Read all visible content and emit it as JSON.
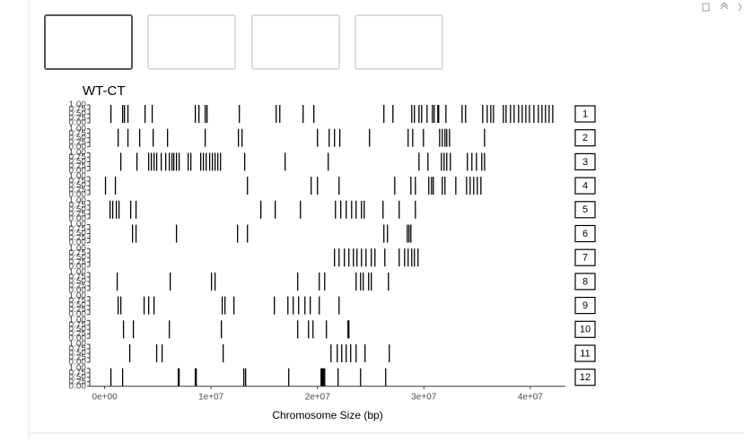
{
  "chart_data": {
    "type": "rug",
    "title": "WT-CT",
    "xlabel": "Chromosome Size (bp)",
    "color": "#000000",
    "xlim": [
      -1400000,
      43300000
    ],
    "xticks": [
      {
        "value": 0,
        "label": "0e+00"
      },
      {
        "value": 10000000,
        "label": "1e+07"
      },
      {
        "value": 20000000,
        "label": "2e+07"
      },
      {
        "value": 30000000,
        "label": "3e+07"
      },
      {
        "value": 40000000,
        "label": "4e+07"
      }
    ],
    "ylim": [
      0,
      1
    ],
    "yticks": [
      {
        "value": 0,
        "label": "0.00"
      },
      {
        "value": 0.25,
        "label": "0.25"
      },
      {
        "value": 0.5,
        "label": "0.50"
      },
      {
        "value": 0.75,
        "label": "0.75"
      },
      {
        "value": 1,
        "label": "1.00"
      }
    ],
    "series": [
      {
        "name": "1",
        "values": [
          590000,
          1690000,
          1860000,
          2190000,
          3800000,
          4470000,
          8520000,
          8860000,
          9450000,
          9620000,
          12660000,
          16120000,
          16460000,
          18650000,
          19660000,
          26240000,
          27090000,
          28860000,
          29110000,
          29540000,
          29790000,
          30300000,
          30800000,
          30970000,
          31310000,
          31390000,
          32070000,
          33590000,
          33920000,
          35530000,
          35950000,
          36290000,
          36540000,
          37470000,
          37720000,
          38140000,
          38480000,
          38900000,
          39240000,
          39580000,
          39920000,
          40340000,
          40760000,
          41100000,
          41430000,
          41770000,
          42110000
        ]
      },
      {
        "name": "2",
        "values": [
          1270000,
          2190000,
          3290000,
          4560000,
          5910000,
          9450000,
          12570000,
          12910000,
          20000000,
          21100000,
          21600000,
          22100000,
          24890000,
          28520000,
          28950000,
          29960000,
          31480000,
          31730000,
          31980000,
          32150000,
          32410000,
          35700000
        ]
      },
      {
        "name": "3",
        "values": [
          1520000,
          3040000,
          4140000,
          4390000,
          4640000,
          4890000,
          5320000,
          5740000,
          6080000,
          6330000,
          6500000,
          6750000,
          7000000,
          7850000,
          8100000,
          9030000,
          9280000,
          9540000,
          9870000,
          10130000,
          10380000,
          10630000,
          10890000,
          13160000,
          16960000,
          21010000,
          29540000,
          30380000,
          31650000,
          31900000,
          32150000,
          32490000,
          34090000,
          34510000,
          34940000,
          35440000,
          35700000
        ]
      },
      {
        "name": "4",
        "values": [
          80000,
          1010000,
          13420000,
          19410000,
          20000000,
          22030000,
          27260000,
          28780000,
          29200000,
          30460000,
          30720000,
          30890000,
          31730000,
          31980000,
          33000000,
          34010000,
          34350000,
          34680000,
          35020000,
          35360000
        ]
      },
      {
        "name": "5",
        "values": [
          510000,
          760000,
          1100000,
          1350000,
          2450000,
          2950000,
          14680000,
          16030000,
          18400000,
          21690000,
          22190000,
          22700000,
          23210000,
          23630000,
          24140000,
          24390000,
          26160000,
          27680000,
          29200000
        ]
      },
      {
        "name": "6",
        "values": [
          2620000,
          2950000,
          6750000,
          12490000,
          13420000,
          26240000,
          26580000,
          28440000,
          28610000,
          28780000
        ]
      },
      {
        "name": "7",
        "values": [
          21600000,
          22030000,
          22530000,
          22950000,
          23380000,
          23710000,
          24140000,
          24560000,
          25060000,
          25400000,
          26330000,
          27680000,
          28190000,
          28520000,
          28860000,
          29110000,
          29450000
        ]
      },
      {
        "name": "8",
        "values": [
          1180000,
          6160000,
          10040000,
          10380000,
          18140000,
          20170000,
          20680000,
          23630000,
          24050000,
          24300000,
          24810000,
          25060000,
          26670000
        ]
      },
      {
        "name": "9",
        "values": [
          1270000,
          1520000,
          3710000,
          4140000,
          4640000,
          11050000,
          11310000,
          12150000,
          15950000,
          17220000,
          17720000,
          18230000,
          18820000,
          19320000,
          20170000,
          22030000
        ]
      },
      {
        "name": "10",
        "values": [
          1770000,
          2700000,
          6080000,
          10970000,
          18140000,
          19160000,
          19580000,
          20840000,
          22870000,
          22950000
        ]
      },
      {
        "name": "11",
        "values": [
          2360000,
          4890000,
          5400000,
          11140000,
          21270000,
          21860000,
          22280000,
          22700000,
          23120000,
          23630000,
          24470000,
          26750000
        ]
      },
      {
        "name": "12",
        "values": [
          590000,
          1690000,
          6920000,
          7000000,
          8520000,
          8610000,
          13080000,
          13250000,
          17300000,
          20340000,
          20420000,
          20510000,
          20590000,
          20680000,
          21940000,
          24050000,
          26410000
        ]
      }
    ]
  }
}
